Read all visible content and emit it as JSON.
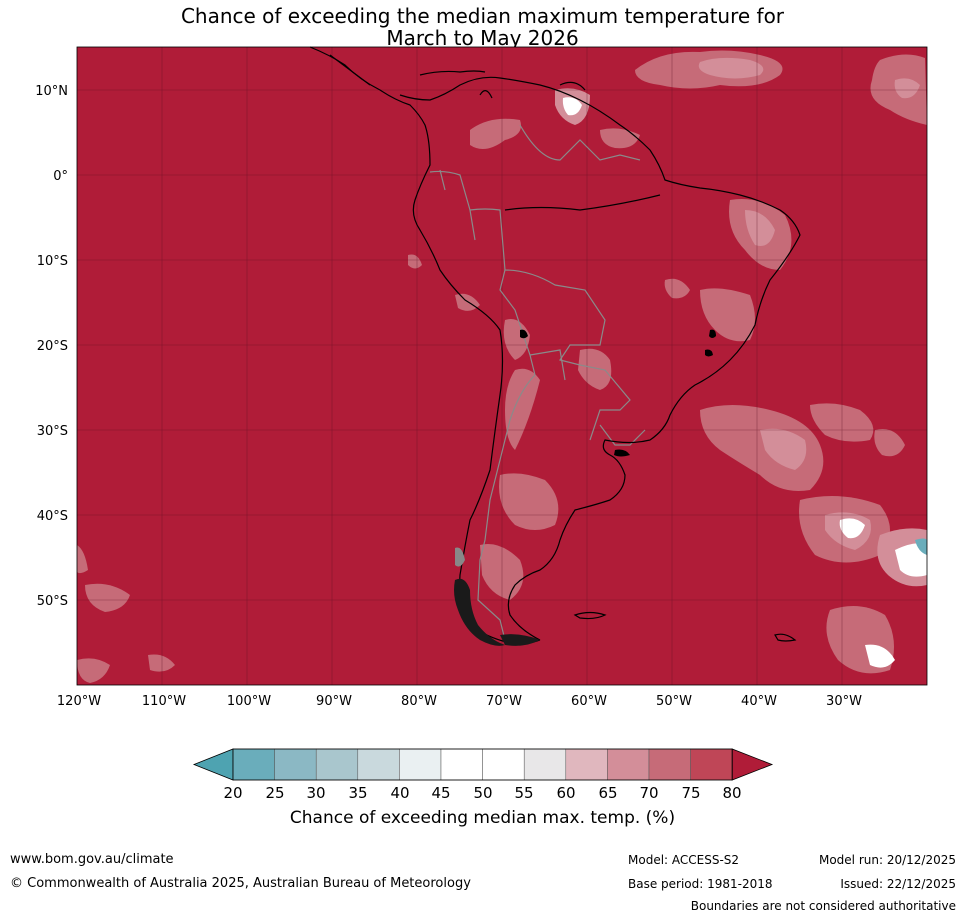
{
  "header": {
    "title_line1": "Chance of exceeding the median maximum temperature for",
    "title_line2": "March to May 2026"
  },
  "map": {
    "lat_labels": [
      "10°N",
      "0°",
      "10°S",
      "20°S",
      "30°S",
      "40°S",
      "50°S"
    ],
    "lon_labels": [
      "120°W",
      "110°W",
      "100°W",
      "90°W",
      "80°W",
      "70°W",
      "60°W",
      "50°W",
      "40°W",
      "30°W"
    ],
    "background_color": "#b01c38"
  },
  "colorbar": {
    "ticks": [
      "20",
      "25",
      "30",
      "35",
      "40",
      "45",
      "50",
      "55",
      "60",
      "65",
      "70",
      "75",
      "80"
    ],
    "colors": [
      "#4ea3b1",
      "#6aadbb",
      "#8bb8c4",
      "#a9c6cd",
      "#c9d9dd",
      "#eaf0f2",
      "#ffffff",
      "#ffffff",
      "#e8e7e8",
      "#e0b7be",
      "#d38e99",
      "#c66b78",
      "#bf4657",
      "#b01c38"
    ],
    "label": "Chance of exceeding median max. temp. (%)"
  },
  "footer": {
    "website": "www.bom.gov.au/climate",
    "copyright": "© Commonwealth of Australia 2025, Australian Bureau of Meteorology",
    "model": "Model: ACCESS-S2",
    "base_period": "Base period: 1981-2018",
    "model_run": "Model run: 20/12/2025",
    "issued": "Issued: 22/12/2025",
    "disclaimer": "Boundaries are not considered authoritative"
  }
}
